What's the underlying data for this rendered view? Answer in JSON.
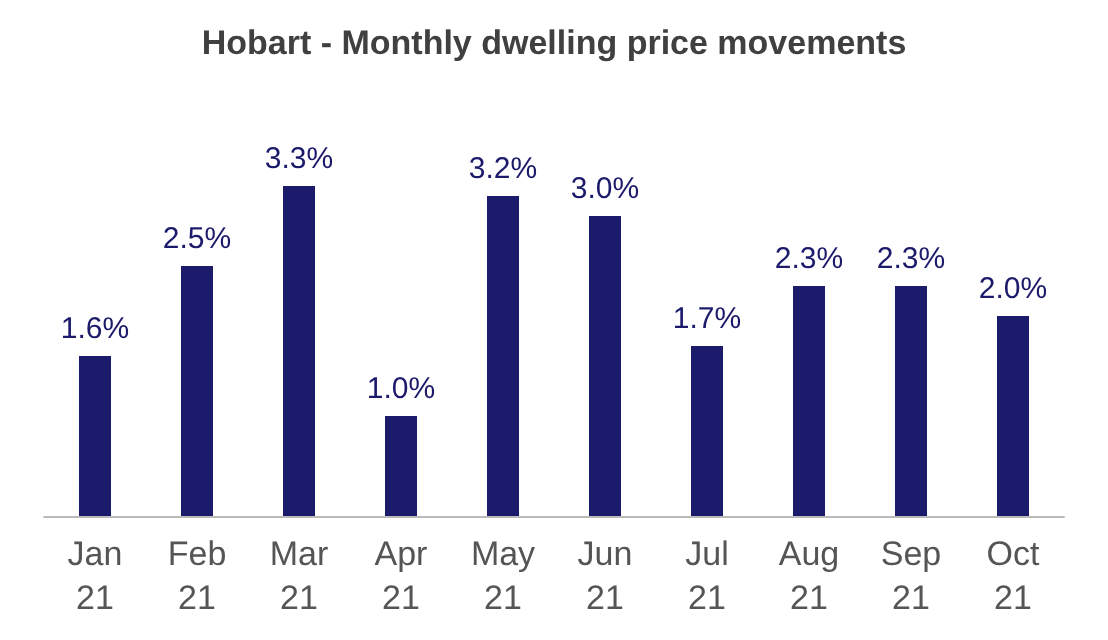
{
  "chart_data": {
    "type": "bar",
    "title": "Hobart - Monthly dwelling price movements",
    "categories": [
      "Jan 21",
      "Feb 21",
      "Mar 21",
      "Apr 21",
      "May 21",
      "Jun 21",
      "Jul 21",
      "Aug 21",
      "Sep 21",
      "Oct 21"
    ],
    "values": [
      1.6,
      2.5,
      3.3,
      1.0,
      3.2,
      3.0,
      1.7,
      2.3,
      2.3,
      2.0
    ],
    "value_labels": [
      "1.6%",
      "2.5%",
      "3.3%",
      "1.0%",
      "3.2%",
      "3.0%",
      "1.7%",
      "2.3%",
      "2.3%",
      "2.0%"
    ],
    "color": "#1c1a6b"
  }
}
